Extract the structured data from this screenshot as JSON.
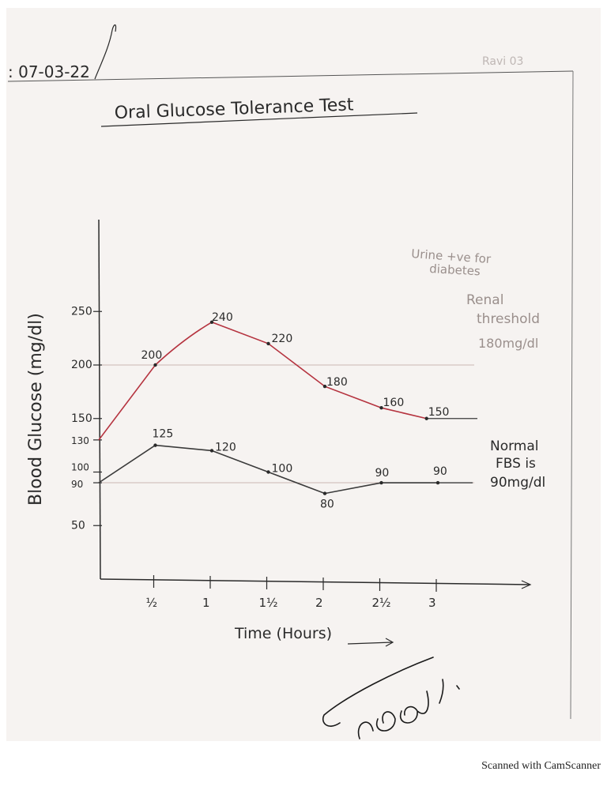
{
  "page": {
    "date": ": 07-03-22",
    "header_faint": "Ravi 03",
    "signature_text": "Sroad",
    "footer": "Scanned with CamScanner"
  },
  "colors": {
    "paper": "#f6f3f1",
    "ink": "#2a2a2a",
    "red_series": "#b5333f",
    "black_series": "#3a3a3a",
    "faint_ink": "#9a8f8c"
  },
  "chart_data": {
    "type": "line",
    "title": "Oral Glucose Tolerance Test",
    "xlabel": "Time (Hours)",
    "ylabel": "Blood Glucose (mg/dl)",
    "x_ticks": [
      "½",
      "1",
      "1½",
      "2",
      "2½",
      "3"
    ],
    "y_ticks": [
      "250",
      "200",
      "150",
      "130",
      "100",
      "90",
      "50"
    ],
    "grid": false,
    "series": [
      {
        "color": "#b5333f",
        "points": [
          {
            "x": 0,
            "y": 130,
            "label": ""
          },
          {
            "x": 0.5,
            "y": 200,
            "label": "200"
          },
          {
            "x": 1,
            "y": 240,
            "label": "240"
          },
          {
            "x": 1.5,
            "y": 220,
            "label": "220"
          },
          {
            "x": 2,
            "y": 180,
            "label": "180"
          },
          {
            "x": 2.5,
            "y": 160,
            "label": "160"
          },
          {
            "x": 2.9,
            "y": 150,
            "label": "150"
          }
        ]
      },
      {
        "color": "#3a3a3a",
        "points": [
          {
            "x": 0,
            "y": 90,
            "label": ""
          },
          {
            "x": 0.5,
            "y": 125,
            "label": "125"
          },
          {
            "x": 1,
            "y": 120,
            "label": "120"
          },
          {
            "x": 1.5,
            "y": 100,
            "label": "100"
          },
          {
            "x": 2,
            "y": 80,
            "label": "80"
          },
          {
            "x": 2.5,
            "y": 90,
            "label": "90"
          },
          {
            "x": 3,
            "y": 90,
            "label": "90"
          }
        ]
      }
    ],
    "reference_lines": [
      {
        "y": 200,
        "label": "200"
      },
      {
        "y": 90,
        "label": "90"
      }
    ],
    "annotations": [
      {
        "text": "Urine +ve for",
        "group": "urine"
      },
      {
        "text": "diabetes",
        "group": "urine"
      },
      {
        "text": "Renal",
        "group": "renal"
      },
      {
        "text": "threshold",
        "group": "renal"
      },
      {
        "text": "180mg/dl",
        "group": "renal"
      },
      {
        "text": "Normal",
        "group": "normal"
      },
      {
        "text": "FBS is",
        "group": "normal"
      },
      {
        "text": "90mg/dl",
        "group": "normal"
      }
    ]
  }
}
